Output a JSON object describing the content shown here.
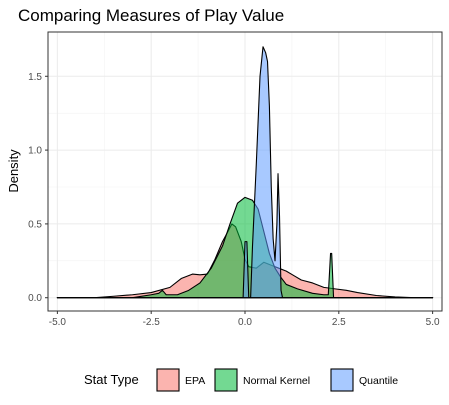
{
  "chart_data": {
    "type": "area",
    "title": "Comparing Measures of Play Value",
    "xlabel": "",
    "ylabel": "Density",
    "xlim": [
      -5.25,
      5.25
    ],
    "ylim": [
      -0.09,
      1.8
    ],
    "x_ticks": [
      -5.0,
      -2.5,
      0.0,
      2.5,
      5.0
    ],
    "x_tick_labels": [
      "-5.0",
      "-2.5",
      "0.0",
      "2.5",
      "5.0"
    ],
    "y_ticks": [
      0.0,
      0.5,
      1.0,
      1.5
    ],
    "y_tick_labels": [
      "0.0",
      "0.5",
      "1.0",
      "1.5"
    ],
    "grid": true,
    "legend": {
      "title": "Stat Type",
      "position": "bottom"
    },
    "series": [
      {
        "name": "EPA",
        "color": "#F8766D",
        "points": [
          [
            -5.0,
            0.0
          ],
          [
            -4.0,
            0.0
          ],
          [
            -3.5,
            0.01
          ],
          [
            -3.0,
            0.02
          ],
          [
            -2.5,
            0.035
          ],
          [
            -2.0,
            0.07
          ],
          [
            -1.7,
            0.13
          ],
          [
            -1.4,
            0.16
          ],
          [
            -1.2,
            0.155
          ],
          [
            -1.0,
            0.16
          ],
          [
            -0.8,
            0.26
          ],
          [
            -0.6,
            0.38
          ],
          [
            -0.45,
            0.45
          ],
          [
            -0.35,
            0.5
          ],
          [
            -0.25,
            0.48
          ],
          [
            -0.1,
            0.38
          ],
          [
            0.0,
            0.26
          ],
          [
            0.1,
            0.21
          ],
          [
            0.3,
            0.2
          ],
          [
            0.5,
            0.24
          ],
          [
            0.7,
            0.22
          ],
          [
            0.9,
            0.2
          ],
          [
            1.1,
            0.18
          ],
          [
            1.3,
            0.15
          ],
          [
            1.5,
            0.12
          ],
          [
            1.8,
            0.1
          ],
          [
            2.1,
            0.07
          ],
          [
            2.4,
            0.06
          ],
          [
            2.7,
            0.05
          ],
          [
            3.0,
            0.035
          ],
          [
            3.5,
            0.015
          ],
          [
            4.0,
            0.005
          ],
          [
            4.5,
            0.0
          ],
          [
            5.0,
            0.0
          ]
        ]
      },
      {
        "name": "Normal Kernel",
        "color": "#00BA38",
        "points": [
          [
            -5.0,
            0.0
          ],
          [
            -3.0,
            0.0
          ],
          [
            -2.5,
            0.02
          ],
          [
            -2.3,
            0.03
          ],
          [
            -2.2,
            0.05
          ],
          [
            -2.1,
            0.02
          ],
          [
            -1.8,
            0.02
          ],
          [
            -1.5,
            0.05
          ],
          [
            -1.2,
            0.1
          ],
          [
            -0.9,
            0.2
          ],
          [
            -0.6,
            0.35
          ],
          [
            -0.4,
            0.5
          ],
          [
            -0.2,
            0.64
          ],
          [
            0.0,
            0.68
          ],
          [
            0.2,
            0.66
          ],
          [
            0.35,
            0.6
          ],
          [
            0.5,
            0.45
          ],
          [
            0.65,
            0.3
          ],
          [
            0.8,
            0.2
          ],
          [
            0.95,
            0.14
          ],
          [
            1.1,
            0.09
          ],
          [
            1.4,
            0.06
          ],
          [
            1.8,
            0.03
          ],
          [
            2.1,
            0.02
          ],
          [
            2.22,
            0.02
          ],
          [
            2.28,
            0.3
          ],
          [
            2.31,
            0.3
          ],
          [
            2.36,
            0.0
          ],
          [
            2.5,
            0.0
          ],
          [
            5.0,
            0.0
          ]
        ]
      },
      {
        "name": "Quantile",
        "color": "#619CFF",
        "points": [
          [
            -5.0,
            0.0
          ],
          [
            -0.05,
            0.0
          ],
          [
            0.0,
            0.38
          ],
          [
            0.05,
            0.38
          ],
          [
            0.1,
            0.0
          ],
          [
            0.15,
            0.0
          ],
          [
            0.2,
            0.35
          ],
          [
            0.3,
            0.9
          ],
          [
            0.4,
            1.5
          ],
          [
            0.48,
            1.7
          ],
          [
            0.55,
            1.66
          ],
          [
            0.6,
            1.6
          ],
          [
            0.65,
            1.3
          ],
          [
            0.7,
            0.75
          ],
          [
            0.75,
            0.4
          ],
          [
            0.8,
            0.25
          ],
          [
            0.85,
            0.5
          ],
          [
            0.88,
            0.84
          ],
          [
            0.92,
            0.55
          ],
          [
            0.96,
            0.05
          ],
          [
            1.0,
            0.0
          ],
          [
            5.0,
            0.0
          ]
        ]
      }
    ]
  }
}
